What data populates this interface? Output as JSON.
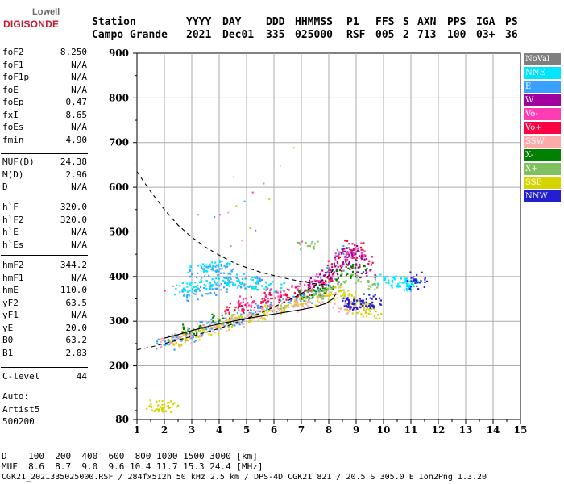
{
  "logo": {
    "line1": "Lowell",
    "line2": "DIGISONDE"
  },
  "header": {
    "row1": [
      "Station",
      "YYYY",
      "DAY",
      "DDD",
      "HHMMSS",
      "P1",
      "FFS",
      "S",
      "AXN",
      "PPS",
      "IGA",
      "PS"
    ],
    "row2": [
      "Campo Grande",
      "2021",
      "Dec01",
      "335",
      "025000",
      "RSF",
      "005",
      "2",
      "713",
      "100",
      "03+",
      "36"
    ]
  },
  "params_a": [
    {
      "name": "foF2",
      "value": "8.250"
    },
    {
      "name": "foF1",
      "value": "N/A"
    },
    {
      "name": "foF1p",
      "value": "N/A"
    },
    {
      "name": "foE",
      "value": "N/A"
    },
    {
      "name": "foEp",
      "value": "0.47"
    },
    {
      "name": "fxI",
      "value": "8.65"
    },
    {
      "name": "foEs",
      "value": "N/A"
    },
    {
      "name": "fmin",
      "value": "4.90"
    }
  ],
  "params_b": [
    {
      "name": "MUF(D)",
      "value": "24.38"
    },
    {
      "name": "M(D)",
      "value": "2.96"
    },
    {
      "name": "D",
      "value": "N/A"
    }
  ],
  "params_c": [
    {
      "name": "h`F",
      "value": "320.0"
    },
    {
      "name": "h`F2",
      "value": "320.0"
    },
    {
      "name": "h`E",
      "value": "N/A"
    },
    {
      "name": "h`Es",
      "value": "N/A"
    }
  ],
  "params_d": [
    {
      "name": "hmF2",
      "value": "344.2"
    },
    {
      "name": "hmF1",
      "value": "N/A"
    },
    {
      "name": "hmE",
      "value": "110.0"
    },
    {
      "name": "yF2",
      "value": "63.5"
    },
    {
      "name": "yF1",
      "value": "N/A"
    },
    {
      "name": "yE",
      "value": "20.0"
    },
    {
      "name": "B0",
      "value": "63.2"
    },
    {
      "name": "B1",
      "value": "2.03"
    }
  ],
  "clevel": {
    "name": "C-level",
    "value": "44"
  },
  "auto": [
    "Auto:",
    "Artist5",
    "500200"
  ],
  "legend": [
    {
      "label": "NoVal",
      "color": "#7f7f7f"
    },
    {
      "label": "NNE",
      "color": "#00e5ff"
    },
    {
      "label": "E",
      "color": "#3aa0ff"
    },
    {
      "label": "W",
      "color": "#a000a0"
    },
    {
      "label": "Vo-",
      "color": "#ff3cb4"
    },
    {
      "label": "Vo+",
      "color": "#ff0040"
    },
    {
      "label": "SSW",
      "color": "#ffaaaa"
    },
    {
      "label": "X-",
      "color": "#008000"
    },
    {
      "label": "X+",
      "color": "#80c060"
    },
    {
      "label": "SSE",
      "color": "#d4d400"
    },
    {
      "label": "NNW",
      "color": "#2020d0"
    }
  ],
  "footer": {
    "row_d": "D    100  200  400  600  800 1000 1500 3000 [km]",
    "row_muf": "MUF  8.6  8.7  9.0  9.6 10.4 11.7 15.3 24.4 [MHz]",
    "row_file": "CGK21_2021335025000.RSF / 284fx512h 50 kHz 2.5 km / DPS-4D CGK21 821 / 20.5 S 305.0 E Ion2Png 1.3.20"
  },
  "chart_data": {
    "type": "scatter",
    "title": "",
    "xlabel": "",
    "ylabel": "",
    "xlim": [
      1,
      15
    ],
    "ylim": [
      80,
      900
    ],
    "x_ticks": [
      1,
      2,
      3,
      4,
      5,
      6,
      7,
      8,
      9,
      10,
      11,
      12,
      13,
      14,
      15
    ],
    "y_ticks": [
      80,
      200,
      300,
      400,
      500,
      600,
      700,
      800,
      900
    ],
    "x_ticks_minor": [
      1.5,
      2.5,
      3.5,
      4.5,
      5.5,
      6.5,
      7.5,
      8.5,
      9.5,
      10.5,
      11.5,
      12.5,
      13.5,
      14.5
    ],
    "y_ticks_minor": [
      100,
      150,
      250,
      350,
      450,
      550,
      650,
      750,
      850
    ],
    "grid": true,
    "legend_position": "right",
    "series": [
      {
        "name": "E",
        "points": [
          [
            2.0,
            250
          ],
          [
            2.4,
            262
          ],
          [
            2.8,
            268
          ],
          [
            3.2,
            278
          ],
          [
            3.6,
            288
          ],
          [
            4.0,
            295
          ],
          [
            4.5,
            305
          ],
          [
            5.0,
            318
          ],
          [
            5.5,
            325
          ],
          [
            6.0,
            335
          ],
          [
            6.5,
            345
          ],
          [
            7.0,
            352
          ],
          [
            7.5,
            365
          ],
          [
            8.0,
            390
          ],
          [
            8.3,
            420
          ],
          [
            8.6,
            460
          ],
          [
            3.0,
            360
          ],
          [
            3.5,
            370
          ],
          [
            4.0,
            380
          ],
          [
            4.5,
            390
          ],
          [
            5.0,
            385
          ],
          [
            3.2,
            410
          ],
          [
            3.8,
            415
          ],
          [
            4.2,
            420
          ],
          [
            5.2,
            392
          ]
        ]
      },
      {
        "name": "NNE",
        "points": [
          [
            2.7,
            370
          ],
          [
            3.0,
            380
          ],
          [
            3.5,
            385
          ],
          [
            4.0,
            390
          ],
          [
            4.5,
            395
          ],
          [
            5.0,
            388
          ],
          [
            5.5,
            382
          ],
          [
            6.0,
            378
          ],
          [
            3.2,
            420
          ],
          [
            4.0,
            425
          ],
          [
            10.0,
            395
          ],
          [
            10.3,
            390
          ],
          [
            10.6,
            385
          ],
          [
            10.9,
            392
          ],
          [
            11.1,
            380
          ]
        ]
      },
      {
        "name": "SSW",
        "points": [
          [
            2.2,
            255
          ],
          [
            2.6,
            262
          ],
          [
            3.0,
            275
          ],
          [
            3.5,
            285
          ],
          [
            4.0,
            292
          ],
          [
            4.5,
            300
          ],
          [
            5.0,
            310
          ],
          [
            5.5,
            318
          ],
          [
            6.0,
            325
          ],
          [
            6.5,
            335
          ],
          [
            7.0,
            342
          ],
          [
            7.5,
            352
          ],
          [
            8.0,
            365
          ],
          [
            8.5,
            330
          ],
          [
            9.0,
            335
          ]
        ]
      },
      {
        "name": "SSE",
        "points": [
          [
            2.4,
            260
          ],
          [
            3.0,
            270
          ],
          [
            3.6,
            282
          ],
          [
            4.2,
            295
          ],
          [
            4.8,
            305
          ],
          [
            5.4,
            315
          ],
          [
            6.0,
            325
          ],
          [
            6.6,
            335
          ],
          [
            7.2,
            345
          ],
          [
            7.8,
            355
          ],
          [
            8.2,
            370
          ],
          [
            8.6,
            360
          ],
          [
            9.0,
            340
          ],
          [
            9.2,
            330
          ],
          [
            9.6,
            320
          ],
          [
            1.7,
            112
          ],
          [
            1.9,
            112
          ],
          [
            2.1,
            111
          ]
        ]
      },
      {
        "name": "Vo+",
        "points": [
          [
            4.5,
            330
          ],
          [
            5.0,
            338
          ],
          [
            5.5,
            346
          ],
          [
            6.0,
            355
          ],
          [
            6.5,
            362
          ],
          [
            7.0,
            372
          ],
          [
            7.5,
            382
          ],
          [
            8.0,
            400
          ],
          [
            8.3,
            425
          ],
          [
            8.6,
            455
          ],
          [
            8.9,
            470
          ],
          [
            9.2,
            440
          ]
        ]
      },
      {
        "name": "Vo-",
        "points": [
          [
            5.0,
            345
          ],
          [
            6.0,
            362
          ],
          [
            7.0,
            380
          ],
          [
            7.8,
            398
          ],
          [
            8.5,
            445
          ],
          [
            9.0,
            455
          ]
        ]
      },
      {
        "name": "W",
        "points": [
          [
            7.5,
            390
          ],
          [
            8.0,
            410
          ],
          [
            8.4,
            440
          ],
          [
            8.8,
            460
          ],
          [
            9.1,
            430
          ],
          [
            9.3,
            410
          ]
        ]
      },
      {
        "name": "X-",
        "points": [
          [
            7.2,
            360
          ],
          [
            7.8,
            372
          ],
          [
            8.6,
            405
          ],
          [
            9.0,
            420
          ],
          [
            4.0,
            305
          ],
          [
            3.0,
            282
          ]
        ]
      },
      {
        "name": "X+",
        "points": [
          [
            7.4,
            365
          ],
          [
            8.2,
            380
          ],
          [
            8.8,
            395
          ],
          [
            9.4,
            385
          ],
          [
            7.2,
            470
          ]
        ]
      },
      {
        "name": "NNW",
        "points": [
          [
            8.8,
            345
          ],
          [
            9.0,
            340
          ],
          [
            9.2,
            338
          ],
          [
            9.4,
            345
          ],
          [
            9.5,
            350
          ],
          [
            11.2,
            400
          ],
          [
            11.2,
            385
          ]
        ]
      }
    ],
    "sparse_points": [
      [
        4.3,
        545
      ],
      [
        4.6,
        560
      ],
      [
        4.9,
        570
      ],
      [
        5.2,
        590
      ],
      [
        5.6,
        610
      ],
      [
        6.2,
        650
      ],
      [
        6.7,
        690
      ],
      [
        3.8,
        535
      ],
      [
        4.0,
        540
      ],
      [
        4.4,
        470
      ],
      [
        4.8,
        482
      ],
      [
        5.1,
        510
      ],
      [
        5.3,
        505
      ],
      [
        7.0,
        480
      ],
      [
        7.2,
        470
      ],
      [
        4.5,
        625
      ],
      [
        5.8,
        575
      ],
      [
        3.2,
        540
      ],
      [
        2.0,
        370
      ],
      [
        2.3,
        380
      ]
    ],
    "curves": [
      {
        "name": "dashed-upper",
        "points": [
          [
            1,
            635
          ],
          [
            1.5,
            590
          ],
          [
            2,
            550
          ],
          [
            2.5,
            515
          ],
          [
            3,
            488
          ],
          [
            3.5,
            466
          ],
          [
            4,
            448
          ],
          [
            4.5,
            432
          ],
          [
            5,
            420
          ],
          [
            5.5,
            410
          ],
          [
            6,
            402
          ],
          [
            6.5,
            395
          ],
          [
            7,
            389
          ],
          [
            7.5,
            384
          ],
          [
            8,
            381
          ]
        ]
      },
      {
        "name": "dashed-lower",
        "points": [
          [
            1,
            236
          ],
          [
            1.5,
            242
          ],
          [
            2,
            250
          ],
          [
            2.5,
            258
          ],
          [
            3,
            266
          ],
          [
            3.5,
            275
          ],
          [
            4,
            284
          ],
          [
            4.5,
            294
          ],
          [
            5,
            306
          ],
          [
            5.5,
            318
          ],
          [
            6,
            332
          ],
          [
            6.5,
            346
          ],
          [
            7,
            362
          ],
          [
            7.5,
            380
          ],
          [
            8,
            402
          ],
          [
            8.25,
            422
          ]
        ]
      },
      {
        "name": "profile-solid",
        "points": [
          [
            2.0,
            262
          ],
          [
            2.5,
            270
          ],
          [
            3.0,
            279
          ],
          [
            3.5,
            287
          ],
          [
            4.0,
            294
          ],
          [
            4.5,
            300
          ],
          [
            5.0,
            306
          ],
          [
            5.5,
            311
          ],
          [
            6.0,
            316
          ],
          [
            6.5,
            321
          ],
          [
            7.0,
            326
          ],
          [
            7.5,
            332
          ],
          [
            7.9,
            340
          ],
          [
            8.15,
            350
          ],
          [
            8.25,
            360
          ]
        ]
      }
    ]
  }
}
